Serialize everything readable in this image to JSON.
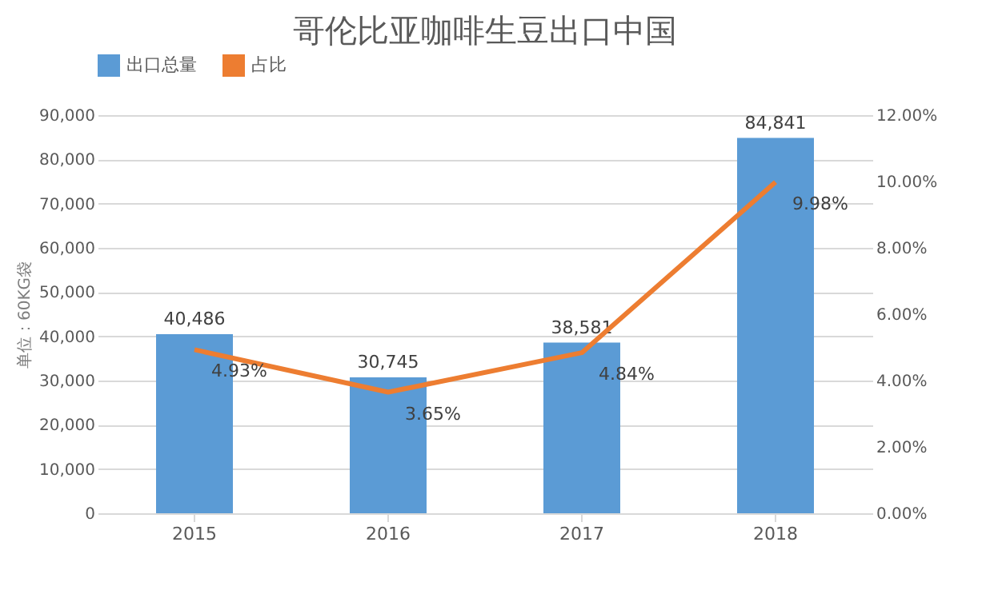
{
  "chart_data": {
    "type": "bar",
    "title": "哥伦比亚咖啡生豆出口中国",
    "ylabel": "单位：60KG袋",
    "categories": [
      "2015",
      "2016",
      "2017",
      "2018"
    ],
    "series": [
      {
        "name": "出口总量",
        "color": "#5b9bd5",
        "values": [
          40486,
          30745,
          38581,
          84841
        ],
        "value_labels": [
          "40,486",
          "30,745",
          "38,581",
          "84,841"
        ]
      },
      {
        "name": "占比",
        "type": "line",
        "axis": "y2",
        "color": "#ed7d31",
        "values": [
          4.93,
          3.65,
          4.84,
          9.98
        ],
        "value_labels": [
          "4.93%",
          "3.65%",
          "4.84%",
          "9.98%"
        ]
      }
    ],
    "ylim": [
      0,
      90000
    ],
    "yticks": [
      {
        "value": 0,
        "label": "0"
      },
      {
        "value": 10000,
        "label": "10,000"
      },
      {
        "value": 20000,
        "label": "20,000"
      },
      {
        "value": 30000,
        "label": "30,000"
      },
      {
        "value": 40000,
        "label": "40,000"
      },
      {
        "value": 50000,
        "label": "50,000"
      },
      {
        "value": 60000,
        "label": "60,000"
      },
      {
        "value": 70000,
        "label": "70,000"
      },
      {
        "value": 80000,
        "label": "80,000"
      },
      {
        "value": 90000,
        "label": "90,000"
      }
    ],
    "y2lim": [
      0,
      12
    ],
    "y2ticks": [
      {
        "value": 0,
        "label": "0.00%"
      },
      {
        "value": 2,
        "label": "2.00%"
      },
      {
        "value": 4,
        "label": "4.00%"
      },
      {
        "value": 6,
        "label": "6.00%"
      },
      {
        "value": 8,
        "label": "8.00%"
      },
      {
        "value": 10,
        "label": "10.00%"
      },
      {
        "value": 12,
        "label": "12.00%"
      }
    ],
    "grid": "y",
    "legend": "top",
    "marker": "none",
    "line_style": "solid"
  }
}
